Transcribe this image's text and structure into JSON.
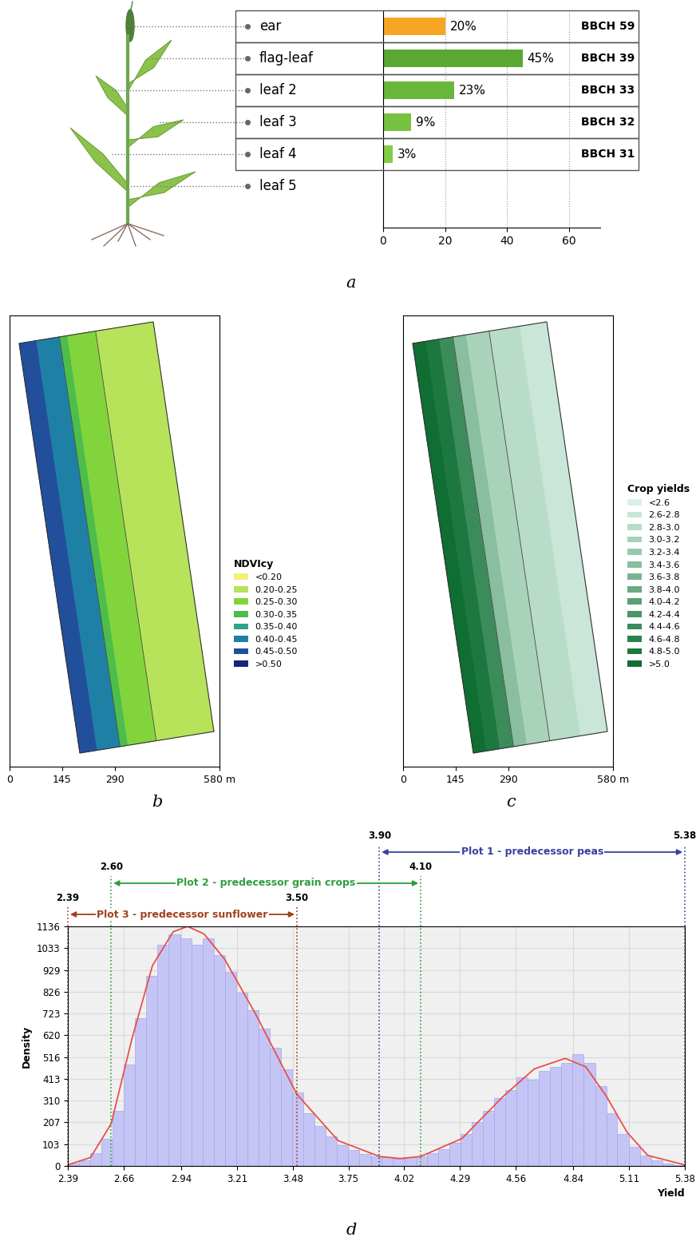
{
  "chart_data": [
    {
      "type": "bar",
      "panel": "a",
      "orientation": "horizontal",
      "categories": [
        "ear",
        "flag-leaf",
        "leaf 2",
        "leaf 3",
        "leaf 4",
        "leaf 5"
      ],
      "values": [
        20,
        45,
        23,
        9,
        3,
        null
      ],
      "value_labels": [
        "20%",
        "45%",
        "23%",
        "9%",
        "3%",
        null
      ],
      "stages": [
        "BBCH 59",
        "BBCH 39",
        "BBCH 33",
        "BBCH 32",
        "BBCH 31",
        null
      ],
      "colors": [
        "#f6a623",
        "#5aa832",
        "#68b63a",
        "#76c240",
        "#84cc46",
        null
      ],
      "xlim": [
        0,
        70
      ],
      "xticks": [
        0,
        20,
        40,
        60
      ],
      "grid": true,
      "data_labels": true
    },
    {
      "type": "map",
      "panel": "b",
      "legend_title": "NDVIcy",
      "classes": [
        "<0.20",
        "0.20-0.25",
        "0.25-0.30",
        "0.30-0.35",
        "0.35-0.40",
        "0.40-0.45",
        "0.45-0.50",
        ">0.50"
      ],
      "colors": [
        "#f4f07c",
        "#b7e35a",
        "#82d43c",
        "#4dbd4b",
        "#2ea58a",
        "#1f80a6",
        "#224f9c",
        "#13247a"
      ],
      "zones": [
        "0.45-0.50",
        "0.40-0.45",
        "0.30-0.35",
        "0.25-0.30",
        "0.20-0.25"
      ],
      "xlim": [
        0,
        580
      ],
      "xticks": [
        0,
        145,
        290,
        {
          "value": 580,
          "label": "580 m"
        }
      ],
      "legend": "lower left"
    },
    {
      "type": "map",
      "panel": "c",
      "legend_title": "Crop yields",
      "classes": [
        "<2.6",
        "2.6-2.8",
        "2.8-3.0",
        "3.0-3.2",
        "3.2-3.4",
        "3.4-3.6",
        "3.6-3.8",
        "3.8-4.0",
        "4.0-4.2",
        "4.2-4.4",
        "4.4-4.6",
        "4.6-4.8",
        "4.8-5.0",
        ">5.0"
      ],
      "colors": [
        "#d9f0e6",
        "#c9e6d8",
        "#b9dcc9",
        "#a9d2bb",
        "#99c8ad",
        "#89be9f",
        "#79b491",
        "#69aa83",
        "#5aa076",
        "#4a9668",
        "#3b8c5a",
        "#2c824d",
        "#1d783f",
        "#0f6e32"
      ],
      "zones": [
        ">5.0",
        "4.8-5.0",
        "4.4-4.6",
        "3.4-3.6",
        "3.0-3.2",
        "2.8-3.0",
        "2.6-2.8"
      ],
      "xlim": [
        0,
        580
      ],
      "xticks": [
        0,
        145,
        290,
        {
          "value": 580,
          "label": "580 m"
        }
      ],
      "legend": "lower left"
    },
    {
      "type": "histogram",
      "panel": "d",
      "xlabel": "Yield",
      "ylabel": "Density",
      "bins": [
        2.39,
        2.444,
        2.499,
        2.553,
        2.607,
        2.662,
        2.716,
        2.771,
        2.825,
        2.879,
        2.934,
        2.988,
        3.042,
        3.097,
        3.151,
        3.205,
        3.26,
        3.314,
        3.368,
        3.423,
        3.477,
        3.532,
        3.586,
        3.64,
        3.695,
        3.749,
        3.803,
        3.858,
        3.912,
        3.966,
        4.021,
        4.075,
        4.129,
        4.184,
        4.238,
        4.293,
        4.347,
        4.401,
        4.456,
        4.51,
        4.564,
        4.619,
        4.673,
        4.727,
        4.782,
        4.836,
        4.89,
        4.945,
        4.999,
        5.053,
        5.108,
        5.162,
        5.216,
        5.271,
        5.325,
        5.38
      ],
      "counts": [
        10,
        25,
        60,
        130,
        260,
        480,
        700,
        900,
        1050,
        1100,
        1080,
        1050,
        1080,
        1000,
        920,
        820,
        740,
        650,
        560,
        460,
        350,
        250,
        190,
        140,
        100,
        75,
        55,
        45,
        40,
        35,
        40,
        45,
        60,
        80,
        110,
        150,
        210,
        260,
        320,
        360,
        420,
        410,
        450,
        470,
        490,
        530,
        490,
        380,
        250,
        150,
        90,
        50,
        25,
        12,
        5
      ],
      "color": "#c5c5f5",
      "curve": {
        "x": [
          2.39,
          2.5,
          2.6,
          2.7,
          2.8,
          2.9,
          2.97,
          3.05,
          3.15,
          3.3,
          3.5,
          3.7,
          3.9,
          4.0,
          4.1,
          4.3,
          4.5,
          4.65,
          4.8,
          4.9,
          5.0,
          5.1,
          5.2,
          5.38
        ],
        "y": [
          5,
          40,
          200,
          600,
          950,
          1110,
          1136,
          1100,
          980,
          720,
          340,
          120,
          45,
          35,
          45,
          130,
          330,
          460,
          510,
          470,
          330,
          160,
          50,
          5
        ],
        "color": "#e8504a"
      },
      "ranges": [
        {
          "name": "Plot 1 - predecessor peas",
          "from": {
            "value": 3.9,
            "label": "3.90"
          },
          "to": {
            "value": 5.38,
            "label": "5.38"
          },
          "color": "#3a3f9e"
        },
        {
          "name": "Plot 2 - predecessor grain crops",
          "from": {
            "value": 2.6,
            "label": "2.60"
          },
          "to": {
            "value": 4.1,
            "label": "4.10"
          },
          "color": "#2e9e3e"
        },
        {
          "name": "Plot 3 - predecessor sunflower",
          "from": {
            "value": 2.39,
            "label": "2.39"
          },
          "to": {
            "value": 3.5,
            "label": "3.50"
          },
          "color": "#a0401c"
        }
      ],
      "xlim": [
        2.39,
        5.38
      ],
      "ylim": [
        0,
        1136
      ],
      "xticks": [
        2.39,
        2.66,
        2.94,
        3.21,
        3.48,
        3.75,
        4.02,
        4.29,
        4.56,
        4.84,
        5.11,
        5.38
      ],
      "yticks": [
        0,
        103,
        207,
        310,
        413,
        516,
        620,
        723,
        826,
        929,
        1033,
        1136
      ],
      "grid": true
    }
  ]
}
